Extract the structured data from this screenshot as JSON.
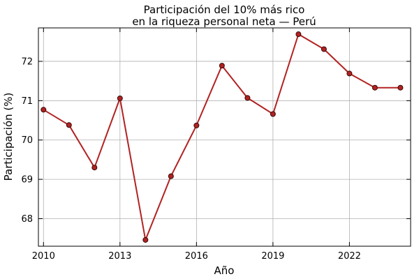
{
  "chart_data": {
    "type": "line",
    "title": [
      "Participación del 10% más rico",
      "en la riqueza personal neta — Perú"
    ],
    "xlabel": "Año",
    "ylabel": "Participación (%)",
    "xlim": [
      2009.8,
      2024.4
    ],
    "ylim": [
      67.3,
      72.85
    ],
    "xticks": [
      2010,
      2013,
      2016,
      2019,
      2022
    ],
    "yticks": [
      68,
      69,
      70,
      71,
      72
    ],
    "grid": true,
    "color": "#b22222",
    "series": [
      {
        "x": [
          2010,
          2011,
          2012,
          2013,
          2014,
          2015,
          2016,
          2017,
          2018,
          2019,
          2020,
          2021,
          2022,
          2023,
          2024
        ],
        "values": [
          70.77,
          70.38,
          69.3,
          71.06,
          67.46,
          69.08,
          70.37,
          71.89,
          71.07,
          70.66,
          72.69,
          72.31,
          71.69,
          71.33,
          71.33
        ]
      }
    ]
  }
}
